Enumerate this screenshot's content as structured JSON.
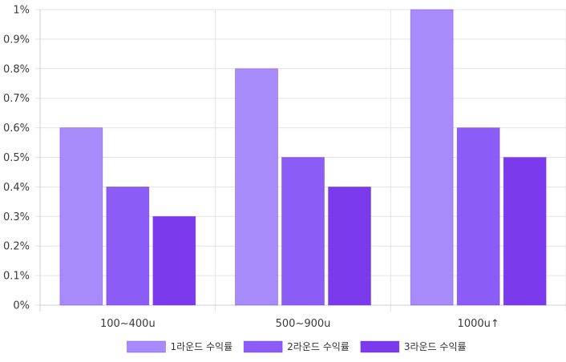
{
  "chart_data": {
    "type": "bar",
    "categories": [
      "100~400u",
      "500~900u",
      "1000u↑"
    ],
    "series": [
      {
        "name": "1라운드 수익률",
        "values": [
          0.6,
          0.8,
          1.0
        ],
        "color": "#a78bfa"
      },
      {
        "name": "2라운드 수익률",
        "values": [
          0.4,
          0.5,
          0.6
        ],
        "color": "#8b5cf6"
      },
      {
        "name": "3라운드 수익률",
        "values": [
          0.3,
          0.4,
          0.5
        ],
        "color": "#7c3aed"
      }
    ],
    "ylim": [
      0,
      1
    ],
    "yticks": [
      "0%",
      "0.1%",
      "0.2%",
      "0.3%",
      "0.4%",
      "0.5%",
      "0.6%",
      "0.7%",
      "0.8%",
      "0.9%",
      "1%"
    ],
    "grid": true,
    "legend_position": "bottom",
    "title": "",
    "xlabel": "",
    "ylabel": ""
  }
}
